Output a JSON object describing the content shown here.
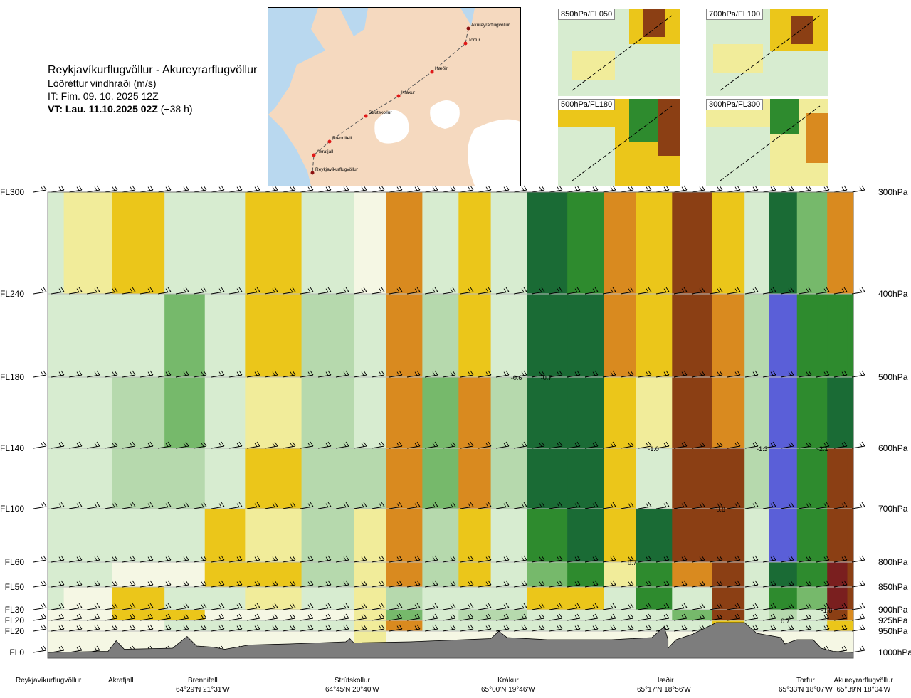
{
  "title": {
    "route": "Reykjavíkurflugvöllur - Akureyrarflugvöllur",
    "variable": "Lóðréttur vindhraði (m/s)",
    "issue_time": "IT: Fim. 09. 10. 2025 12Z",
    "valid_label": "VT: Lau. 11.10.2025 02Z",
    "valid_offset": "(+38 h)"
  },
  "map": {
    "points": [
      {
        "name": "Akureyrarflugvöllur"
      },
      {
        "name": "Torfur"
      },
      {
        "name": "Hæðir"
      },
      {
        "name": "Krákur"
      },
      {
        "name": "Strútskollur"
      },
      {
        "name": "Brennifell"
      },
      {
        "name": "Akrafjall"
      },
      {
        "name": "Reykjavíkurflugvöllur"
      }
    ]
  },
  "minimaps": [
    {
      "label": "850hPa/FL050"
    },
    {
      "label": "700hPa/FL100"
    },
    {
      "label": "500hPa/FL180"
    },
    {
      "label": "300hPa/FL300"
    }
  ],
  "levels": [
    {
      "fl": "FL300",
      "hpa": "300hPa"
    },
    {
      "fl": "FL240",
      "hpa": "400hPa"
    },
    {
      "fl": "FL180",
      "hpa": "500hPa"
    },
    {
      "fl": "FL140",
      "hpa": "600hPa"
    },
    {
      "fl": "FL100",
      "hpa": "700hPa"
    },
    {
      "fl": "FL60",
      "hpa": "800hPa"
    },
    {
      "fl": "FL50",
      "hpa": "850hPa"
    },
    {
      "fl": "FL30",
      "hpa": "900hPa"
    },
    {
      "fl": "FL20",
      "hpa": "925hPa"
    },
    {
      "fl": "FL20",
      "hpa": "950hPa"
    },
    {
      "fl": "FL0",
      "hpa": "1000hPa"
    }
  ],
  "locations": [
    {
      "name": "Reykjavíkurflugvöllur",
      "coord": ""
    },
    {
      "name": "Akrafjall",
      "coord": ""
    },
    {
      "name": "Brennifell",
      "coord": "64°29'N 21°31'W"
    },
    {
      "name": "Strútskollur",
      "coord": "64°45'N 20°40'W"
    },
    {
      "name": "Krákur",
      "coord": "65°00'N 19°46'W"
    },
    {
      "name": "Hæðir",
      "coord": "65°17'N 18°56'W"
    },
    {
      "name": "Torfur",
      "coord": "65°33'N 18°07'W"
    },
    {
      "name": "Akureyrarflugvöllur",
      "coord": "65°39'N 18°04'W"
    }
  ],
  "chart_data": {
    "type": "heatmap",
    "title": "Lóðréttur vindhraði (m/s)",
    "colors": {
      "strong_down": "#7a1f1f",
      "down_3": "#8b3f14",
      "down_2": "#d98a1f",
      "down_1": "#ebc61a",
      "down_05": "#f1ec9a",
      "neutral": "#f5f7e4",
      "up_05": "#d7ecd0",
      "up_1": "#b6d9ad",
      "up_2": "#76b96b",
      "up_3": "#2e8b2e",
      "up_4": "#1a6b35",
      "up_5": "#5a5fd8",
      "terrain": "#7d7d7d"
    },
    "value_labels": [
      {
        "text": "-0.6"
      },
      {
        "text": "-0.7"
      },
      {
        "text": "-1.0"
      },
      {
        "text": "-1.3"
      },
      {
        "text": "-2.1"
      },
      {
        "text": "0.8"
      },
      {
        "text": "0.7"
      },
      {
        "text": "0.7"
      },
      {
        "text": "-1.8"
      }
    ],
    "columns": [
      {
        "x": 0.0,
        "v": [
          0.5,
          0.6,
          0.5,
          0.6,
          0.6,
          0.5,
          0.4,
          0.2,
          0.2,
          0.2
        ]
      },
      {
        "x": 0.04,
        "v": [
          -0.4,
          0.6,
          0.6,
          0.5,
          0.6,
          0.4,
          0.2,
          0.1,
          0.2,
          0.2
        ]
      },
      {
        "x": 0.12,
        "v": [
          -1.0,
          0.6,
          0.8,
          0.7,
          0.6,
          0.2,
          -0.6,
          -0.8,
          0.2,
          0.2
        ]
      },
      {
        "x": 0.17,
        "v": [
          0.5,
          1.2,
          1.6,
          1.0,
          0.6,
          0.2,
          0.3,
          -0.6,
          0.6,
          0.2
        ]
      },
      {
        "x": 0.22,
        "v": [
          0.5,
          0.6,
          0.5,
          0.6,
          -0.6,
          -0.6,
          0.3,
          0.1,
          0.5,
          0.2
        ]
      },
      {
        "x": 0.27,
        "v": [
          -0.6,
          -0.6,
          -0.5,
          -0.6,
          -0.5,
          -0.6,
          -0.4,
          0.2,
          0.3,
          0.2
        ]
      },
      {
        "x": 0.36,
        "v": [
          0.5,
          0.8,
          1.0,
          1.0,
          1.0,
          0.7,
          0.4,
          0.2,
          0.4,
          0.2
        ]
      },
      {
        "x": 0.4,
        "v": [
          0.2,
          0.5,
          0.5,
          0.8,
          -0.5,
          -0.5,
          -0.3,
          -0.5,
          -0.5,
          -0.2
        ]
      },
      {
        "x": 0.44,
        "v": [
          -1.4,
          -1.5,
          -1.6,
          -1.5,
          -1.2,
          -1.5,
          0.8,
          1.5,
          -1.5,
          0.2
        ]
      },
      {
        "x": 0.49,
        "v": [
          0.6,
          0.8,
          1.2,
          1.2,
          1.0,
          0.8,
          0.5,
          0.6,
          0.4,
          0.2
        ]
      },
      {
        "x": 0.53,
        "v": [
          -0.6,
          -1.0,
          -1.6,
          -1.2,
          -1.0,
          -0.6,
          0.5,
          0.8,
          0.4,
          0.2
        ]
      },
      {
        "x": 0.57,
        "v": [
          0.5,
          0.6,
          0.8,
          0.7,
          0.6,
          0.5,
          0.5,
          1.0,
          0.6,
          0.2
        ]
      },
      {
        "x": 0.62,
        "v": [
          3.5,
          4.0,
          4.5,
          4.0,
          3.0,
          1.5,
          -0.6,
          0.5,
          0.4,
          0.2
        ]
      },
      {
        "x": 0.67,
        "v": [
          3.0,
          3.8,
          4.0,
          4.0,
          3.5,
          2.0,
          -0.8,
          0.6,
          0.4,
          0.2
        ]
      },
      {
        "x": 0.71,
        "v": [
          -1.8,
          -1.5,
          -1.0,
          -0.7,
          -0.6,
          -0.5,
          0.5,
          0.5,
          0.4,
          0.2
        ]
      },
      {
        "x": 0.75,
        "v": [
          -0.6,
          -0.6,
          -0.5,
          0.6,
          3.5,
          3.0,
          2.0,
          0.5,
          0.4,
          0.2
        ]
      },
      {
        "x": 0.8,
        "v": [
          -3.0,
          -3.2,
          -3.0,
          -3.0,
          -2.5,
          -1.5,
          0.6,
          1.2,
          0.6,
          0.2
        ]
      },
      {
        "x": 0.85,
        "v": [
          -0.6,
          -1.2,
          -1.5,
          -2.5,
          -3.2,
          -3.5,
          -3.5,
          -3.0,
          -1.0,
          0.2
        ]
      },
      {
        "x": 0.88,
        "v": [
          0.6,
          0.8,
          1.0,
          0.8,
          0.6,
          0.5,
          0.4,
          0.4,
          0.3,
          0.2
        ]
      },
      {
        "x": 0.91,
        "v": [
          3.5,
          4.8,
          5.2,
          5.2,
          5.0,
          4.5,
          3.0,
          1.0,
          0.5,
          0.2
        ]
      },
      {
        "x": 0.95,
        "v": [
          1.2,
          2.0,
          2.5,
          3.0,
          2.5,
          2.0,
          1.5,
          0.6,
          0.4,
          0.2
        ]
      },
      {
        "x": 0.985,
        "v": [
          -2.0,
          3.0,
          4.5,
          -3.0,
          -3.5,
          -4.0,
          -4.0,
          -3.5,
          -1.0,
          0.2
        ]
      },
      {
        "x": 1.0,
        "v": [
          -1.8,
          2.0,
          4.0,
          -2.5,
          -3.0,
          -3.5,
          -3.0,
          -2.0,
          -0.8,
          0.2
        ]
      }
    ],
    "terrain": [
      {
        "x": 0.0,
        "fl": 0
      },
      {
        "x": 0.075,
        "fl": 1
      },
      {
        "x": 0.085,
        "fl": 11
      },
      {
        "x": 0.095,
        "fl": 3
      },
      {
        "x": 0.155,
        "fl": 4
      },
      {
        "x": 0.173,
        "fl": 15
      },
      {
        "x": 0.185,
        "fl": 6
      },
      {
        "x": 0.205,
        "fl": 5
      },
      {
        "x": 0.22,
        "fl": 3
      },
      {
        "x": 0.25,
        "fl": 7
      },
      {
        "x": 0.3,
        "fl": 8
      },
      {
        "x": 0.37,
        "fl": 10
      },
      {
        "x": 0.375,
        "fl": 13
      },
      {
        "x": 0.38,
        "fl": 9
      },
      {
        "x": 0.45,
        "fl": 10
      },
      {
        "x": 0.55,
        "fl": 13
      },
      {
        "x": 0.56,
        "fl": 20
      },
      {
        "x": 0.57,
        "fl": 14
      },
      {
        "x": 0.62,
        "fl": 12
      },
      {
        "x": 0.7,
        "fl": 12
      },
      {
        "x": 0.75,
        "fl": 14
      },
      {
        "x": 0.765,
        "fl": 22
      },
      {
        "x": 0.77,
        "fl": 12
      },
      {
        "x": 0.77,
        "fl": 4
      },
      {
        "x": 0.78,
        "fl": 12
      },
      {
        "x": 0.8,
        "fl": 17
      },
      {
        "x": 0.83,
        "fl": 24
      },
      {
        "x": 0.865,
        "fl": 24
      },
      {
        "x": 0.88,
        "fl": 18
      },
      {
        "x": 0.91,
        "fl": 14
      },
      {
        "x": 0.915,
        "fl": 8
      },
      {
        "x": 0.93,
        "fl": 12
      },
      {
        "x": 0.95,
        "fl": 12
      },
      {
        "x": 0.96,
        "fl": 4
      },
      {
        "x": 0.975,
        "fl": 1
      },
      {
        "x": 1.0,
        "fl": 0
      }
    ],
    "ylabel": "",
    "xlabel": ""
  }
}
